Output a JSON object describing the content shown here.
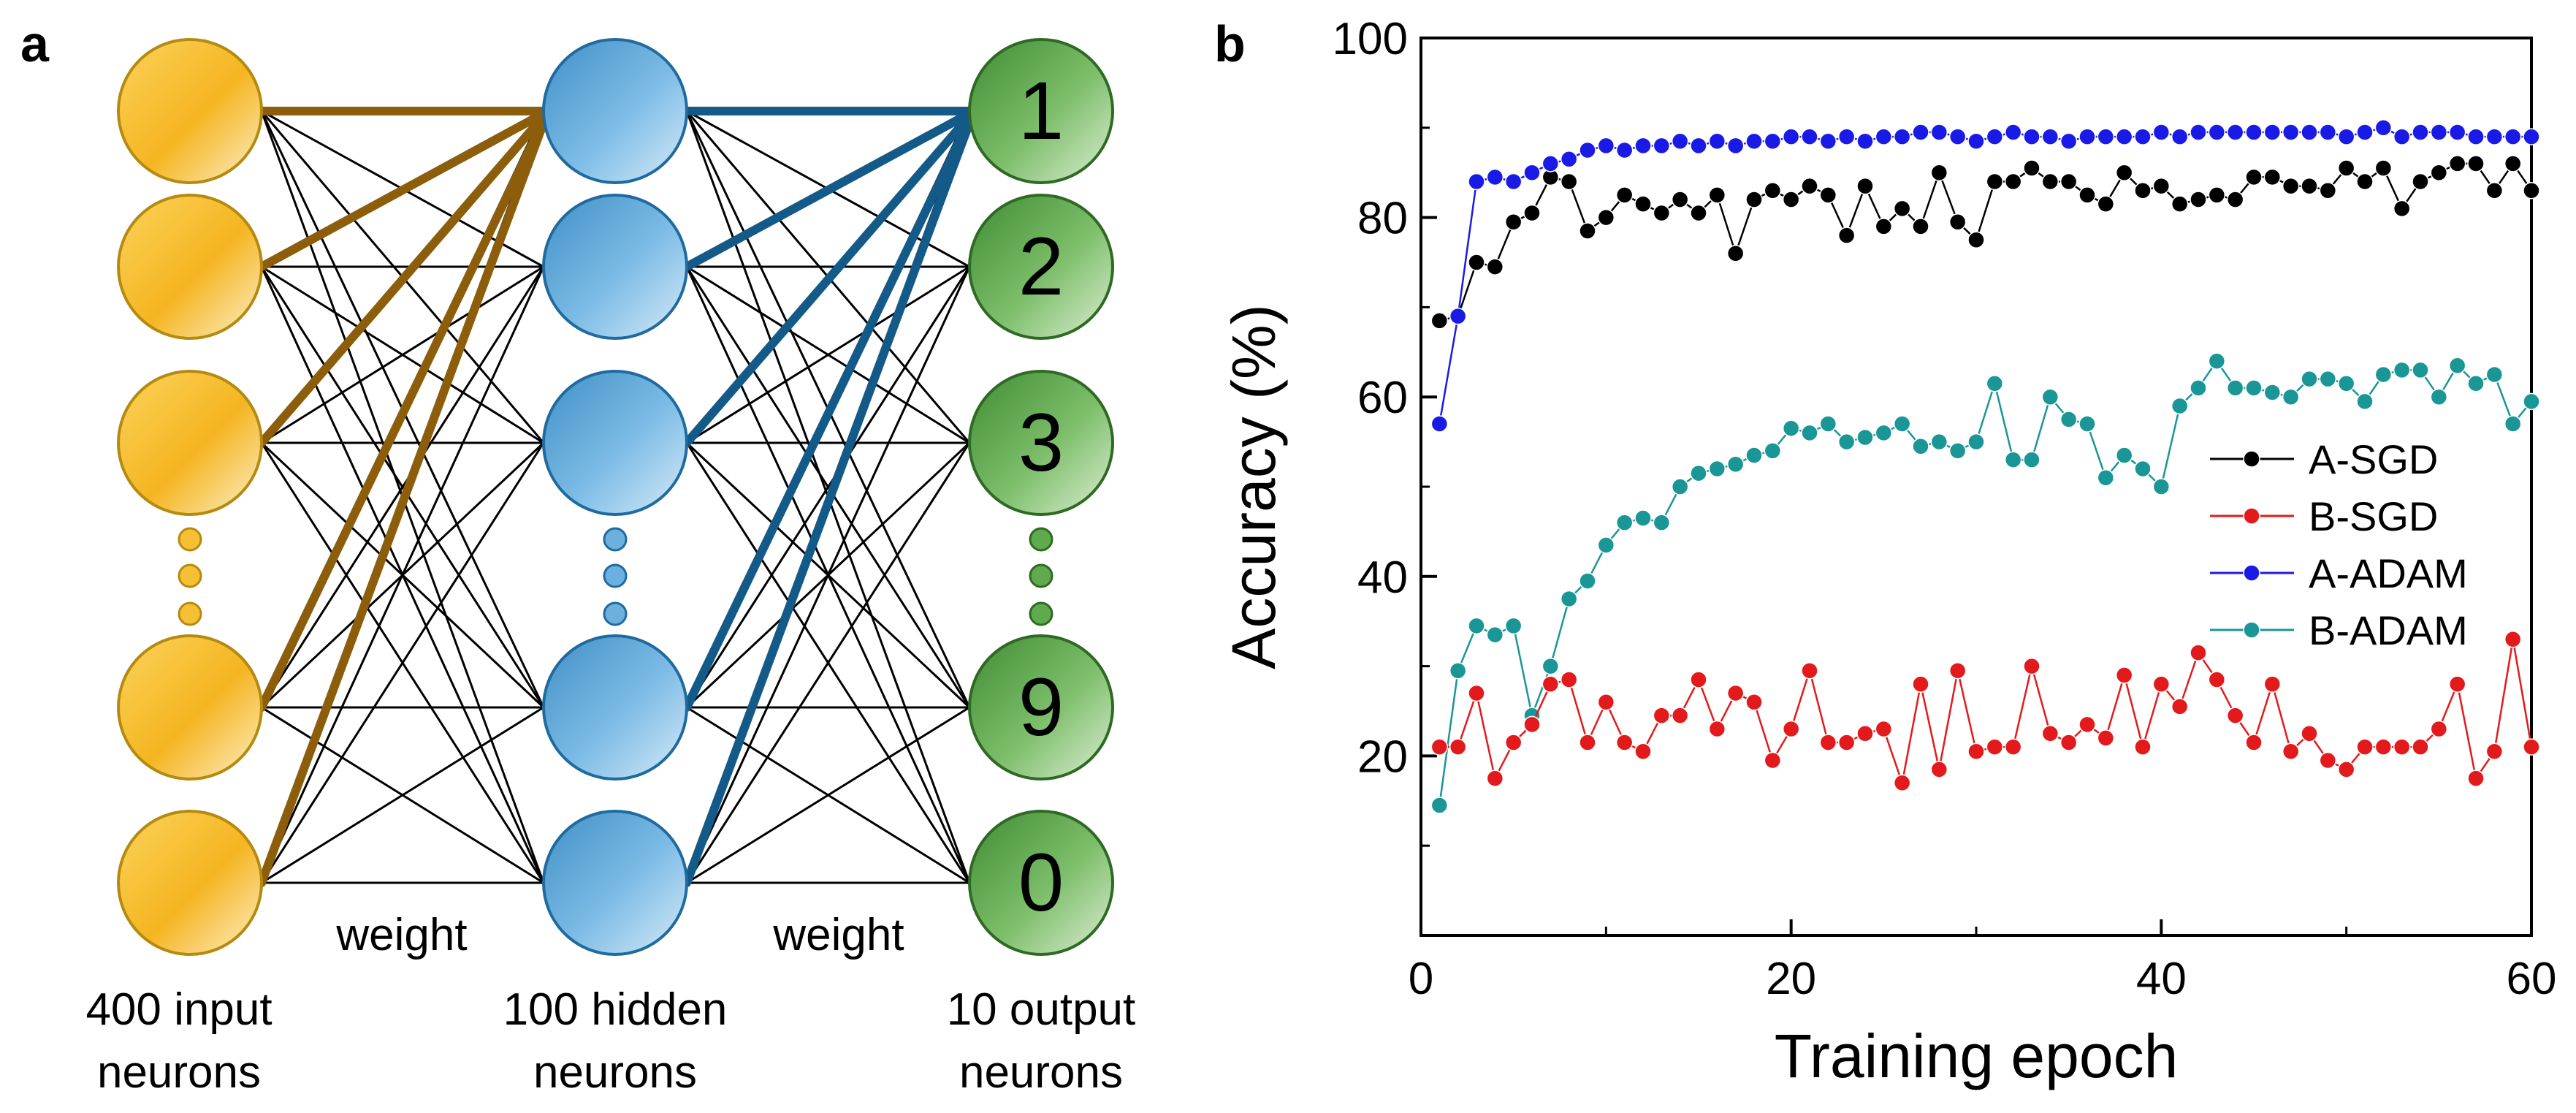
{
  "panel_a": {
    "label": "a",
    "layers": [
      {
        "caption_line1": "400 input",
        "caption_line2": "neurons",
        "color": "#F5B521",
        "nodes": [
          "",
          "",
          "",
          "",
          ""
        ]
      },
      {
        "caption_line1": "100 hidden",
        "caption_line2": "neurons",
        "color": "#5FA8D8",
        "nodes": [
          "",
          "",
          "",
          "",
          ""
        ]
      },
      {
        "caption_line1": "10 output",
        "caption_line2": "neurons",
        "color": "#4E9A3C",
        "nodes": [
          "1",
          "2",
          "3",
          "9",
          "0"
        ]
      }
    ],
    "weight_labels": [
      "weight",
      "weight"
    ],
    "highlight_colors": {
      "input_to_hidden": "#8C5E0C",
      "hidden_to_output": "#145A88"
    }
  },
  "panel_b": {
    "label": "b",
    "chart_data": {
      "type": "line",
      "title": "",
      "xlabel": "Training epoch",
      "ylabel": "Accuracy (%)",
      "xlim": [
        0,
        60
      ],
      "ylim": [
        0,
        100
      ],
      "xticks": [
        0,
        20,
        40,
        60
      ],
      "yticks": [
        20,
        40,
        60,
        80,
        100
      ],
      "grid": false,
      "legend_position": "center-right",
      "x": [
        1,
        2,
        3,
        4,
        5,
        6,
        7,
        8,
        9,
        10,
        11,
        12,
        13,
        14,
        15,
        16,
        17,
        18,
        19,
        20,
        21,
        22,
        23,
        24,
        25,
        26,
        27,
        28,
        29,
        30,
        31,
        32,
        33,
        34,
        35,
        36,
        37,
        38,
        39,
        40,
        41,
        42,
        43,
        44,
        45,
        46,
        47,
        48,
        49,
        50,
        51,
        52,
        53,
        54,
        55,
        56,
        57,
        58,
        59,
        60
      ],
      "series": [
        {
          "name": "A-SGD",
          "color": "#000000",
          "values": [
            68.5,
            69,
            75,
            74.5,
            79.5,
            80.5,
            84.5,
            84,
            78.5,
            80,
            82.5,
            81.5,
            80.5,
            82,
            80.5,
            82.5,
            76,
            82,
            83,
            82,
            83.5,
            82.5,
            78,
            83.5,
            79,
            81,
            79,
            85,
            79.5,
            77.5,
            84,
            84,
            85.5,
            84,
            84,
            82.5,
            81.5,
            85,
            83,
            83.5,
            81.5,
            82,
            82.5,
            82,
            84.5,
            84.5,
            83.5,
            83.5,
            83,
            85.5,
            84,
            85.5,
            81,
            84,
            85,
            86,
            86,
            83,
            86,
            83
          ]
        },
        {
          "name": "B-SGD",
          "color": "#E31A1C",
          "values": [
            21,
            21,
            27,
            17.5,
            21.5,
            23.5,
            28,
            28.5,
            21.5,
            26,
            21.5,
            20.5,
            24.5,
            24.5,
            28.5,
            23,
            27,
            26,
            19.5,
            23,
            29.5,
            21.5,
            21.5,
            22.5,
            23,
            17,
            28,
            18.5,
            29.5,
            20.5,
            21,
            21,
            30,
            22.5,
            21.5,
            23.5,
            22,
            29,
            21,
            28,
            25.5,
            31.5,
            28.5,
            24.5,
            21.5,
            28,
            20.5,
            22.5,
            19.5,
            18.5,
            21,
            21,
            21,
            21,
            23,
            28,
            17.5,
            20.5,
            33,
            21
          ]
        },
        {
          "name": "A-ADAM",
          "color": "#1A1AE6",
          "values": [
            57,
            69,
            84,
            84.5,
            84,
            85,
            86,
            86.5,
            87.5,
            88,
            87.5,
            88,
            88,
            88.5,
            88,
            88.5,
            88,
            88.5,
            88.5,
            89,
            89,
            88.5,
            89,
            88.5,
            89,
            89,
            89.5,
            89.5,
            89,
            88.5,
            89,
            89.5,
            89,
            89,
            88.5,
            89,
            89,
            89,
            89,
            89.5,
            89,
            89.5,
            89.5,
            89.5,
            89.5,
            89.5,
            89.5,
            89.5,
            89.5,
            89,
            89.5,
            90,
            89,
            89.5,
            89.5,
            89.5,
            89,
            89,
            89,
            89
          ]
        },
        {
          "name": "B-ADAM",
          "color": "#1A9696",
          "values": [
            14.5,
            29.5,
            34.5,
            33.5,
            34.5,
            24.5,
            30,
            37.5,
            39.5,
            43.5,
            46,
            46.5,
            46,
            50,
            51.5,
            52,
            52.5,
            53.5,
            54,
            56.5,
            56,
            57,
            55,
            55.5,
            56,
            57,
            54.5,
            55,
            54,
            55,
            61.5,
            53,
            53,
            60,
            57.5,
            57,
            51,
            53.5,
            52,
            50,
            59,
            61,
            64,
            61,
            61,
            60.5,
            60,
            62,
            62,
            61.5,
            59.5,
            62.5,
            63,
            63,
            60,
            63.5,
            61.5,
            62.5,
            57,
            59.5
          ]
        }
      ]
    }
  }
}
